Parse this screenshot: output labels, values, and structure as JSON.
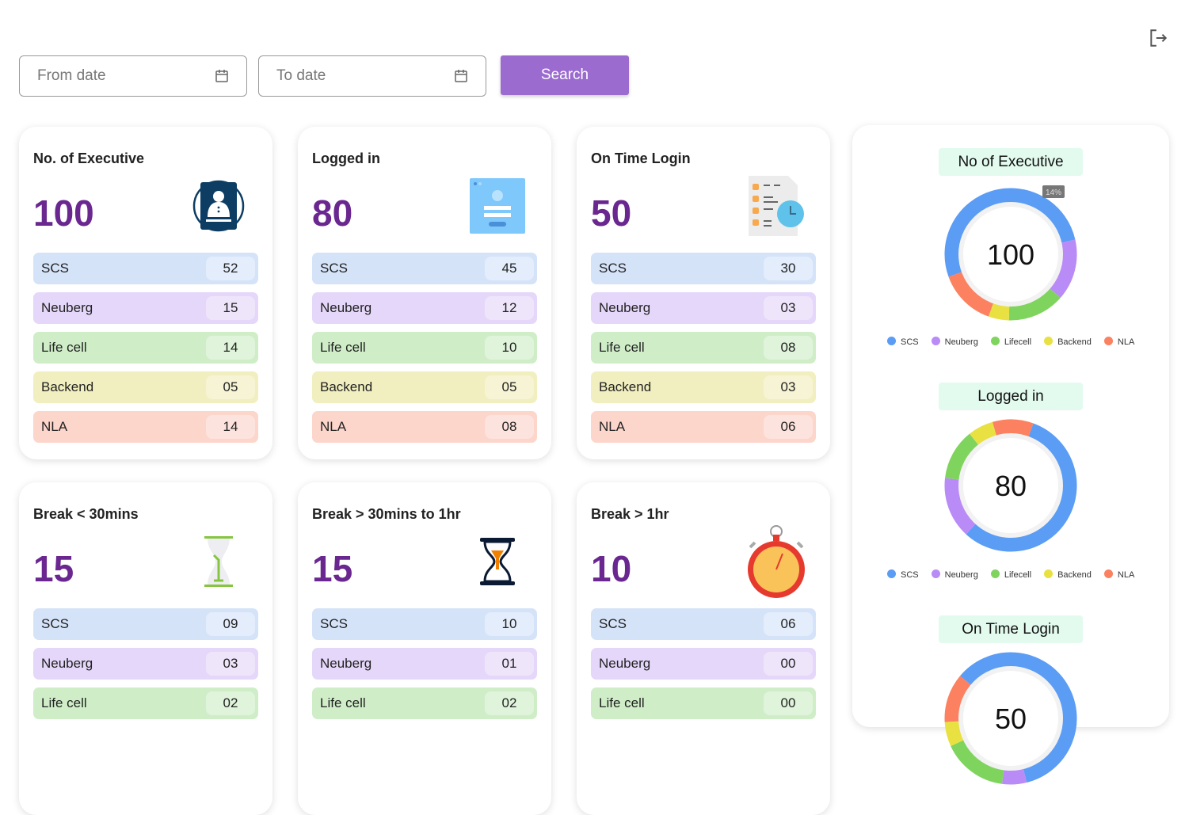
{
  "filters": {
    "from_placeholder": "From date",
    "to_placeholder": "To date",
    "search_label": "Search"
  },
  "colors": {
    "SCS": "#5b9cf5",
    "Neuberg": "#b98bf7",
    "Lifecell": "#7fd45e",
    "Backend": "#e8e141",
    "NLA": "#fb8160",
    "accent": "#6a2790"
  },
  "row_colors": {
    "SCS": "#d5e3f9",
    "Neuberg": "#e5d7f9",
    "Lifecell": "#cfeec8",
    "Backend": "#f1efbf",
    "NLA": "#fcd5cb"
  },
  "cards": [
    {
      "title": "No. of Executive",
      "total": "100",
      "icon": "executive-badge-icon",
      "rows": [
        {
          "label": "SCS",
          "value": "52"
        },
        {
          "label": "Neuberg",
          "value": "15"
        },
        {
          "label": "Life cell",
          "value": "14"
        },
        {
          "label": "Backend",
          "value": "05"
        },
        {
          "label": "NLA",
          "value": "14"
        }
      ]
    },
    {
      "title": "Logged in",
      "total": "80",
      "icon": "login-screen-icon",
      "rows": [
        {
          "label": "SCS",
          "value": "45"
        },
        {
          "label": "Neuberg",
          "value": "12"
        },
        {
          "label": "Life cell",
          "value": "10"
        },
        {
          "label": "Backend",
          "value": "05"
        },
        {
          "label": "NLA",
          "value": "08"
        }
      ]
    },
    {
      "title": "On Time Login",
      "total": "50",
      "icon": "schedule-clock-icon",
      "rows": [
        {
          "label": "SCS",
          "value": "30"
        },
        {
          "label": "Neuberg",
          "value": "03"
        },
        {
          "label": "Life cell",
          "value": "08"
        },
        {
          "label": "Backend",
          "value": "03"
        },
        {
          "label": "NLA",
          "value": "06"
        }
      ]
    },
    {
      "title": "Break < 30mins",
      "total": "15",
      "icon": "hourglass-green-icon",
      "rows": [
        {
          "label": "SCS",
          "value": "09"
        },
        {
          "label": "Neuberg",
          "value": "03"
        },
        {
          "label": "Life cell",
          "value": "02"
        }
      ]
    },
    {
      "title": "Break > 30mins to 1hr",
      "total": "15",
      "icon": "hourglass-dark-icon",
      "rows": [
        {
          "label": "SCS",
          "value": "10"
        },
        {
          "label": "Neuberg",
          "value": "01"
        },
        {
          "label": "Life cell",
          "value": "02"
        }
      ]
    },
    {
      "title": "Break > 1hr",
      "total": "10",
      "icon": "stopwatch-icon",
      "rows": [
        {
          "label": "SCS",
          "value": "06"
        },
        {
          "label": "Neuberg",
          "value": "00"
        },
        {
          "label": "Life cell",
          "value": "00"
        }
      ]
    }
  ],
  "chart_data": [
    {
      "type": "pie",
      "title": "No of Executive",
      "center_label": "100",
      "categories": [
        "SCS",
        "Neuberg",
        "Lifecell",
        "Backend",
        "NLA"
      ],
      "values": [
        52,
        15,
        14,
        5,
        14
      ],
      "tooltip": "14%",
      "legend": "bottom"
    },
    {
      "type": "pie",
      "title": "Logged in",
      "center_label": "80",
      "categories": [
        "SCS",
        "Neuberg",
        "Lifecell",
        "Backend",
        "NLA"
      ],
      "values": [
        45,
        12,
        10,
        5,
        8
      ],
      "legend": "bottom"
    },
    {
      "type": "pie",
      "title": "On Time Login",
      "center_label": "50",
      "categories": [
        "SCS",
        "Neuberg",
        "Lifecell",
        "Backend",
        "NLA"
      ],
      "values": [
        30,
        3,
        8,
        3,
        6
      ]
    }
  ]
}
